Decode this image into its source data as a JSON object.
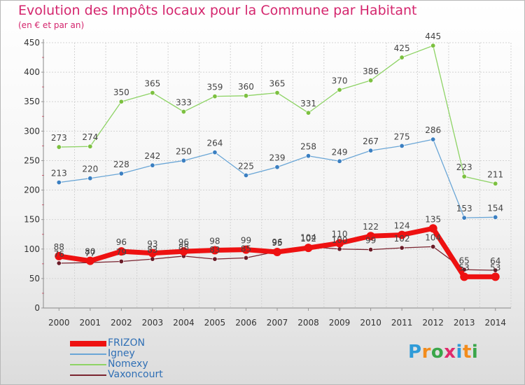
{
  "title": "Evolution des Impôts locaux pour la Commune par Habitant",
  "subtitle": "(en € et par an)",
  "logo": {
    "text": "Proxiti",
    "letter_colors": [
      "#2f9bd8",
      "#f28c1c",
      "#3aa64a",
      "#e02a6b",
      "#2f9bd8",
      "#f28c1c",
      "#3aa64a"
    ]
  },
  "chart_data": {
    "type": "line",
    "x": [
      "2000",
      "2001",
      "2002",
      "2003",
      "2004",
      "2005",
      "2006",
      "2007",
      "2008",
      "2009",
      "2010",
      "2011",
      "2012",
      "2013",
      "2014"
    ],
    "ylim": [
      0,
      450
    ],
    "yticks": [
      0,
      50,
      100,
      150,
      200,
      250,
      300,
      350,
      400,
      450
    ],
    "grid": true,
    "legend_position": "bottom-left",
    "series": [
      {
        "name": "Nomexy",
        "color": "#8ed365",
        "marker_color": "#7cc040",
        "values": [
          273,
          274,
          350,
          365,
          333,
          359,
          360,
          365,
          331,
          370,
          386,
          425,
          445,
          223,
          211
        ],
        "labels": [
          "273",
          "274",
          "350",
          "365",
          "333",
          "359",
          "360",
          "365",
          "331",
          "370",
          "386",
          "425",
          "445",
          "223",
          "211"
        ]
      },
      {
        "name": "Igney",
        "color": "#6aa6d6",
        "marker_color": "#3b7fc1",
        "values": [
          213,
          220,
          228,
          242,
          250,
          264,
          225,
          239,
          258,
          249,
          267,
          275,
          286,
          153,
          154
        ],
        "labels": [
          "213",
          "220",
          "228",
          "242",
          "250",
          "264",
          "225",
          "239",
          "258",
          "249",
          "267",
          "275",
          "286",
          "153",
          "154"
        ]
      },
      {
        "name": "Vaxoncourt",
        "color": "#7a2430",
        "marker_color": "#6a1c28",
        "values": [
          76,
          77,
          79,
          83,
          88,
          83,
          85,
          96,
          104,
          100,
          99,
          102,
          104,
          65,
          64
        ],
        "labels": [
          "76",
          "77",
          "79",
          "83",
          "88",
          "83",
          "85",
          "96",
          "104",
          "100",
          "99",
          "102",
          "104",
          "65",
          "64"
        ]
      },
      {
        "name": "FRIZON",
        "color": "#ee1111",
        "marker_color": "#ee1111",
        "values": [
          88,
          80,
          96,
          93,
          96,
          98,
          99,
          95,
          102,
          110,
          122,
          124,
          135,
          53,
          53
        ],
        "labels": [
          "88",
          "80",
          "96",
          "93",
          "96",
          "98",
          "99",
          "95",
          "102",
          "110",
          "122",
          "124",
          "135",
          "53",
          "53"
        ]
      }
    ],
    "legend": [
      "FRIZON",
      "Igney",
      "Nomexy",
      "Vaxoncourt"
    ]
  }
}
